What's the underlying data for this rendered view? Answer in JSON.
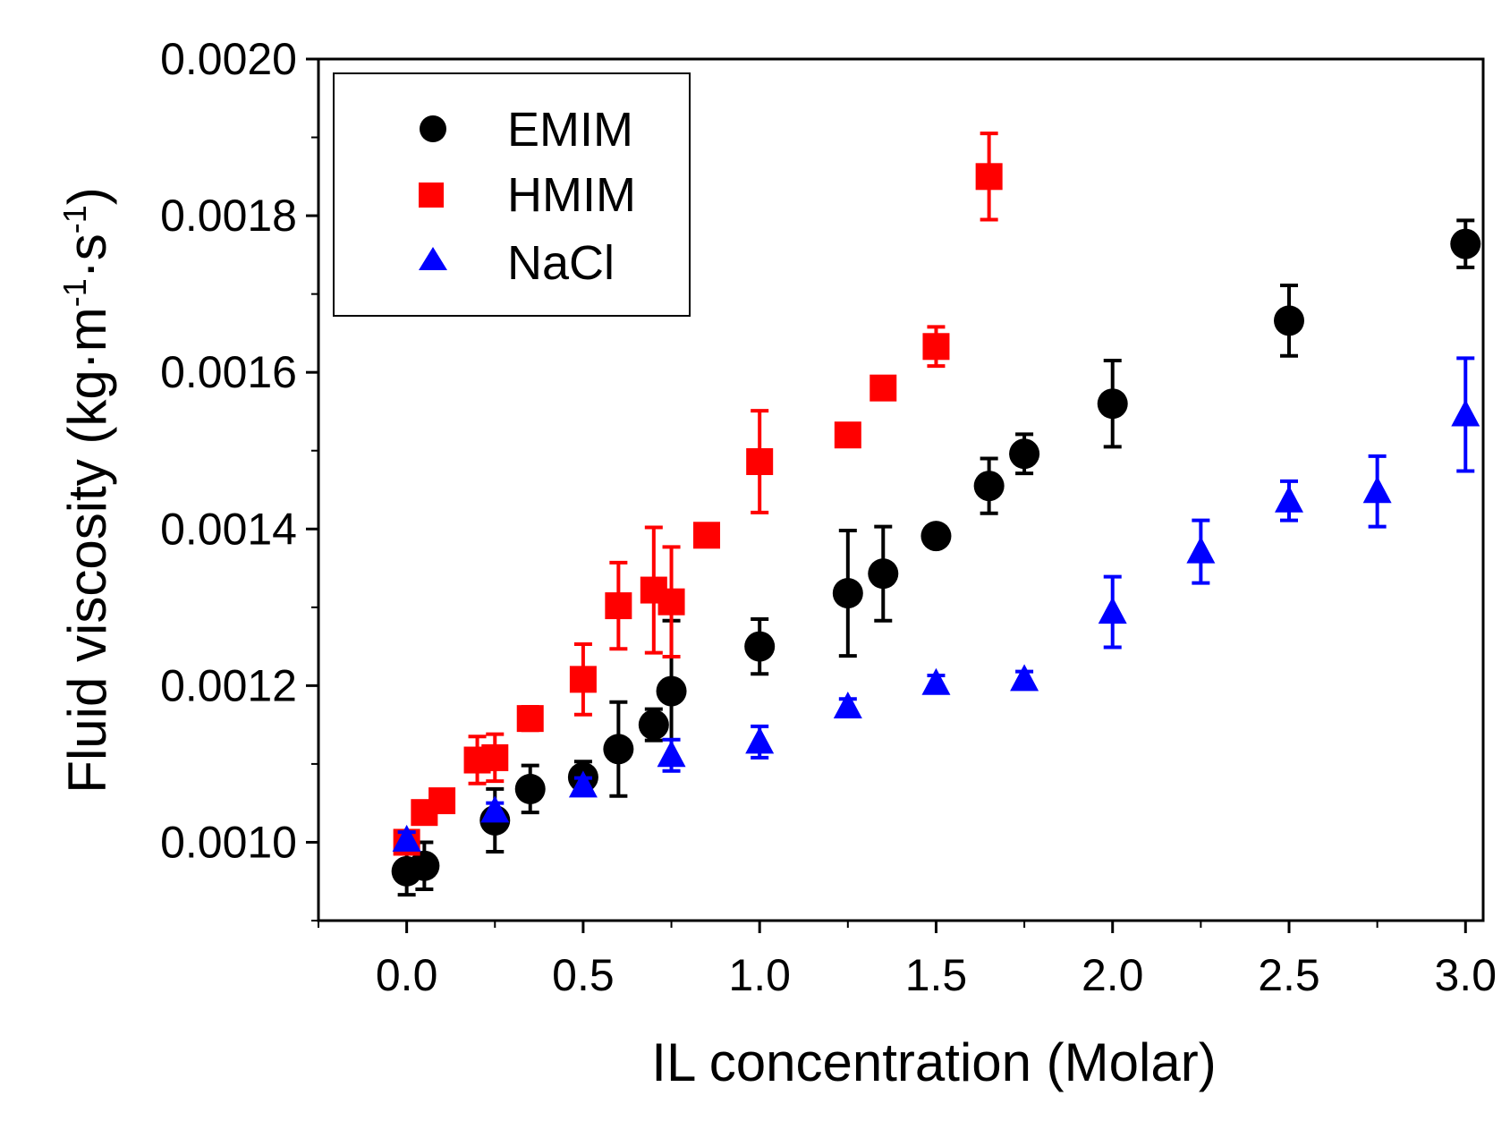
{
  "chart_data": {
    "type": "scatter",
    "title": "",
    "xlabel": "IL concentration (Molar)",
    "ylabel_parts": [
      "Fluid viscosity (kg·m",
      "-1",
      "·s",
      "-1",
      ")"
    ],
    "xlim": [
      -0.25,
      3.05
    ],
    "ylim": [
      0.0009,
      0.002
    ],
    "xticks": [
      0.0,
      0.5,
      1.0,
      1.5,
      2.0,
      2.5,
      3.0
    ],
    "xtick_labels": [
      "0.0",
      "0.5",
      "1.0",
      "1.5",
      "2.0",
      "2.5",
      "3.0"
    ],
    "yticks": [
      0.001,
      0.0012,
      0.0014,
      0.0016,
      0.0018,
      0.002
    ],
    "ytick_labels": [
      "0.0010",
      "0.0012",
      "0.0014",
      "0.0016",
      "0.0018",
      "0.0020"
    ],
    "legend_position": "top-left",
    "series": [
      {
        "name": "EMIM",
        "color": "#000000",
        "marker": "circle",
        "points": [
          {
            "x": 0.0,
            "y": 0.000963,
            "err": 3e-05
          },
          {
            "x": 0.05,
            "y": 0.00097,
            "err": 3e-05
          },
          {
            "x": 0.25,
            "y": 0.001028,
            "err": 4e-05
          },
          {
            "x": 0.35,
            "y": 0.001068,
            "err": 3e-05
          },
          {
            "x": 0.5,
            "y": 0.001083,
            "err": 2e-05
          },
          {
            "x": 0.6,
            "y": 0.001119,
            "err": 6e-05
          },
          {
            "x": 0.7,
            "y": 0.00115,
            "err": 2e-05
          },
          {
            "x": 0.75,
            "y": 0.001193,
            "err": 9e-05
          },
          {
            "x": 1.0,
            "y": 0.00125,
            "err": 3.5e-05
          },
          {
            "x": 1.25,
            "y": 0.001318,
            "err": 8e-05
          },
          {
            "x": 1.35,
            "y": 0.001343,
            "err": 6e-05
          },
          {
            "x": 1.5,
            "y": 0.001391,
            "err": 1e-05
          },
          {
            "x": 1.65,
            "y": 0.001455,
            "err": 3.5e-05
          },
          {
            "x": 1.75,
            "y": 0.001496,
            "err": 2.5e-05
          },
          {
            "x": 2.0,
            "y": 0.00156,
            "err": 5.5e-05
          },
          {
            "x": 2.5,
            "y": 0.001666,
            "err": 4.5e-05
          },
          {
            "x": 3.0,
            "y": 0.001764,
            "err": 3e-05
          }
        ]
      },
      {
        "name": "HMIM",
        "color": "#ff0000",
        "marker": "square",
        "points": [
          {
            "x": 0.0,
            "y": 0.001,
            "err": 1e-05
          },
          {
            "x": 0.05,
            "y": 0.001038,
            "err": 1e-05
          },
          {
            "x": 0.1,
            "y": 0.001053,
            "err": 1e-05
          },
          {
            "x": 0.2,
            "y": 0.001105,
            "err": 3e-05
          },
          {
            "x": 0.25,
            "y": 0.001108,
            "err": 3e-05
          },
          {
            "x": 0.35,
            "y": 0.001158,
            "err": 1.5e-05
          },
          {
            "x": 0.5,
            "y": 0.001208,
            "err": 4.5e-05
          },
          {
            "x": 0.6,
            "y": 0.001302,
            "err": 5.5e-05
          },
          {
            "x": 0.7,
            "y": 0.001322,
            "err": 8e-05
          },
          {
            "x": 0.75,
            "y": 0.001307,
            "err": 7e-05
          },
          {
            "x": 0.85,
            "y": 0.001392,
            "err": 1e-05
          },
          {
            "x": 1.0,
            "y": 0.001486,
            "err": 6.5e-05
          },
          {
            "x": 1.25,
            "y": 0.00152,
            "err": 1e-05
          },
          {
            "x": 1.35,
            "y": 0.00158,
            "err": 1e-05
          },
          {
            "x": 1.5,
            "y": 0.001633,
            "err": 2.5e-05
          },
          {
            "x": 1.65,
            "y": 0.00185,
            "err": 5.5e-05
          }
        ]
      },
      {
        "name": "NaCl",
        "color": "#0000ff",
        "marker": "triangle",
        "points": [
          {
            "x": 0.0,
            "y": 0.001003,
            "err": 1e-05
          },
          {
            "x": 0.25,
            "y": 0.00104,
            "err": 1e-05
          },
          {
            "x": 0.5,
            "y": 0.001072,
            "err": 1e-05
          },
          {
            "x": 0.75,
            "y": 0.001111,
            "err": 2e-05
          },
          {
            "x": 1.0,
            "y": 0.001128,
            "err": 2e-05
          },
          {
            "x": 1.25,
            "y": 0.001173,
            "err": 1e-05
          },
          {
            "x": 1.5,
            "y": 0.001203,
            "err": 1e-05
          },
          {
            "x": 1.75,
            "y": 0.001208,
            "err": 1e-05
          },
          {
            "x": 2.0,
            "y": 0.001294,
            "err": 4.5e-05
          },
          {
            "x": 2.25,
            "y": 0.001371,
            "err": 4e-05
          },
          {
            "x": 2.5,
            "y": 0.001436,
            "err": 2.5e-05
          },
          {
            "x": 2.75,
            "y": 0.001448,
            "err": 4.5e-05
          },
          {
            "x": 3.0,
            "y": 0.001546,
            "err": 7.2e-05
          }
        ]
      }
    ]
  }
}
